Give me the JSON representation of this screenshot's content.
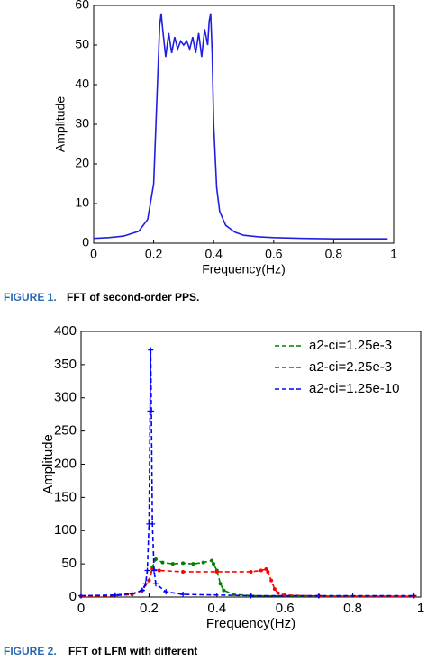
{
  "chart_data": [
    {
      "type": "line",
      "xlabel": "Frequency(Hz)",
      "ylabel": "Amplitude",
      "xlim": [
        0,
        1
      ],
      "ylim": [
        0,
        60
      ],
      "xticks": [
        0,
        0.2,
        0.4,
        0.6,
        0.8,
        1
      ],
      "yticks": [
        0,
        10,
        20,
        30,
        40,
        50,
        60
      ],
      "series": [
        {
          "color": "#1f1fe0",
          "x": [
            0,
            0.05,
            0.1,
            0.15,
            0.18,
            0.2,
            0.21,
            0.22,
            0.225,
            0.23,
            0.24,
            0.25,
            0.26,
            0.27,
            0.28,
            0.29,
            0.3,
            0.31,
            0.32,
            0.33,
            0.34,
            0.35,
            0.36,
            0.37,
            0.38,
            0.385,
            0.39,
            0.395,
            0.4,
            0.41,
            0.42,
            0.44,
            0.47,
            0.5,
            0.55,
            0.6,
            0.7,
            0.8,
            0.9,
            0.98
          ],
          "values": [
            1.2,
            1.4,
            1.8,
            3,
            6,
            15,
            35,
            55,
            58,
            54,
            47,
            53,
            48,
            52,
            49,
            51,
            50,
            51,
            49,
            52,
            48,
            53,
            47,
            54,
            50,
            56,
            58,
            48,
            30,
            14,
            8,
            4.5,
            2.8,
            2,
            1.6,
            1.4,
            1.2,
            1.1,
            1.1,
            1.1
          ]
        }
      ]
    },
    {
      "type": "line",
      "xlabel": "Frequency(Hz)",
      "ylabel": "Amplitude",
      "xlim": [
        0,
        1
      ],
      "ylim": [
        0,
        400
      ],
      "xticks": [
        0,
        0.2,
        0.4,
        0.6,
        0.8,
        1
      ],
      "yticks": [
        0,
        50,
        100,
        150,
        200,
        250,
        300,
        350,
        400
      ],
      "legend": "upper right",
      "series": [
        {
          "name": "a2-ci=1.25e-3",
          "color": "#008000",
          "marker": "dot",
          "x": [
            0,
            0.1,
            0.15,
            0.18,
            0.2,
            0.21,
            0.22,
            0.24,
            0.27,
            0.3,
            0.33,
            0.36,
            0.385,
            0.39,
            0.4,
            0.41,
            0.42,
            0.45,
            0.5,
            0.7,
            0.98
          ],
          "values": [
            1,
            2,
            4,
            10,
            25,
            45,
            57,
            52,
            50,
            51,
            50,
            52,
            55,
            50,
            40,
            20,
            10,
            4,
            2,
            1,
            1
          ]
        },
        {
          "name": "a2-ci=2.25e-3",
          "color": "#ff0000",
          "marker": "dot",
          "x": [
            0,
            0.1,
            0.15,
            0.18,
            0.2,
            0.21,
            0.23,
            0.3,
            0.4,
            0.5,
            0.53,
            0.545,
            0.55,
            0.56,
            0.57,
            0.58,
            0.6,
            0.7,
            0.98
          ],
          "values": [
            1,
            2,
            4,
            10,
            25,
            42,
            40,
            38,
            38,
            38,
            40,
            42,
            38,
            25,
            12,
            6,
            3,
            1.5,
            1
          ]
        },
        {
          "name": "a2-ci=1.25e-10",
          "color": "#0000ff",
          "marker": "plus",
          "x": [
            0,
            0.1,
            0.15,
            0.18,
            0.19,
            0.195,
            0.2,
            0.203,
            0.205,
            0.207,
            0.21,
            0.215,
            0.22,
            0.25,
            0.3,
            0.5,
            0.7,
            0.98
          ],
          "values": [
            2,
            3,
            5,
            10,
            20,
            40,
            110,
            280,
            372,
            280,
            110,
            40,
            20,
            8,
            4,
            2,
            2,
            2
          ]
        }
      ]
    }
  ],
  "captions": [
    {
      "label": "FIGURE 1.",
      "text": "FFT of second-order PPS."
    },
    {
      "label": "FIGURE 2.",
      "text": "FFT of LFM with different"
    }
  ]
}
